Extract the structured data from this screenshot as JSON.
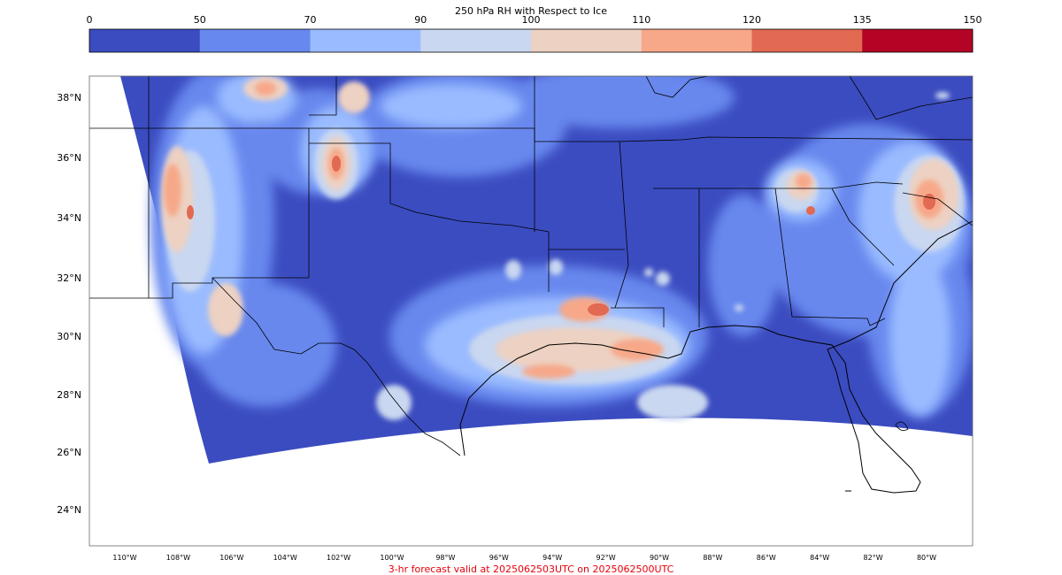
{
  "colorbar": {
    "title": "250 hPa RH with Respect to Ice",
    "levels": [
      "0",
      "50",
      "70",
      "90",
      "100",
      "110",
      "120",
      "135",
      "150"
    ],
    "colors": [
      "#3b4cc0",
      "#6788ee",
      "#9abbff",
      "#c9d7f0",
      "#edd1c2",
      "#f7a889",
      "#e26952",
      "#b40426"
    ]
  },
  "map": {
    "lat_labels": [
      "38°N",
      "36°N",
      "34°N",
      "32°N",
      "30°N",
      "28°N",
      "26°N",
      "24°N"
    ],
    "lon_labels": [
      "110°W",
      "108°W",
      "106°W",
      "104°W",
      "102°W",
      "100°W",
      "98°W",
      "96°W",
      "94°W",
      "92°W",
      "90°W",
      "88°W",
      "86°W",
      "84°W",
      "82°W",
      "80°W"
    ],
    "background_color": "#3b4cc0"
  },
  "footer": {
    "text": "3-hr forecast valid at 2025062503UTC on 2025062500UTC"
  }
}
